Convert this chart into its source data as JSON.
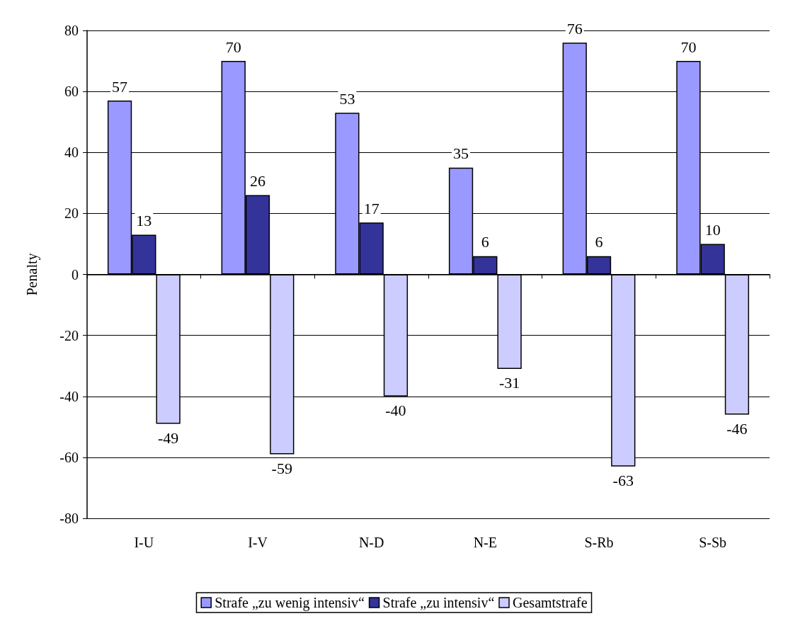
{
  "chart_data": {
    "type": "bar",
    "ylabel": "Penalty",
    "categories": [
      "I-U",
      "I-V",
      "N-D",
      "N-E",
      "S-Rb",
      "S-Sb"
    ],
    "series": [
      {
        "name": "Strafe „zu wenig intensiv“",
        "color": "#9999ff",
        "values": [
          57,
          70,
          53,
          35,
          76,
          70
        ]
      },
      {
        "name": "Strafe „zu intensiv“",
        "color": "#333399",
        "values": [
          13,
          26,
          17,
          6,
          6,
          10
        ]
      },
      {
        "name": "Gesamtstrafe",
        "color": "#ccccff",
        "values": [
          -49,
          -59,
          -40,
          -31,
          -63,
          -46
        ]
      }
    ],
    "ylim": [
      -80,
      80
    ],
    "yticks": [
      -80,
      -60,
      -40,
      -20,
      0,
      20,
      40,
      60,
      80
    ],
    "grid": "y",
    "legend": "bottom",
    "data_labels": true
  }
}
